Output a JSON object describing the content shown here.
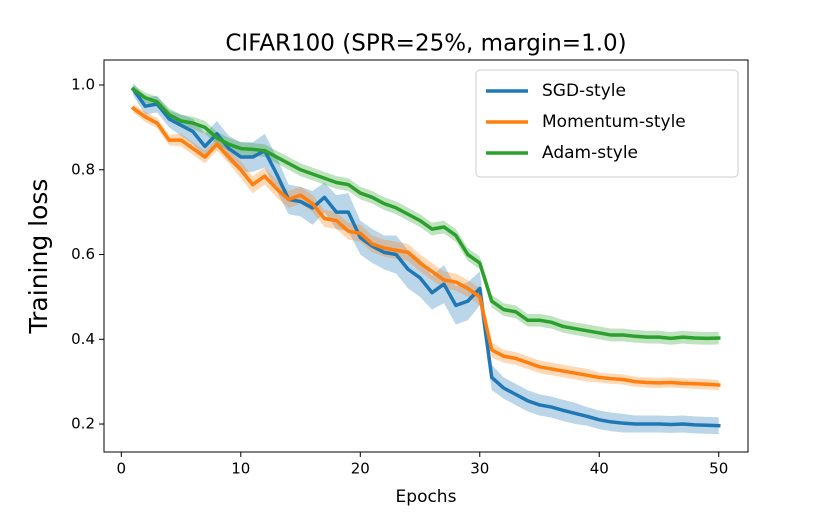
{
  "chart_data": {
    "type": "line",
    "title": "CIFAR100 (SPR=25%, margin=1.0)",
    "xlabel": "Epochs",
    "ylabel": "Training loss",
    "x": [
      1,
      2,
      3,
      4,
      5,
      6,
      7,
      8,
      9,
      10,
      11,
      12,
      13,
      14,
      15,
      16,
      17,
      18,
      19,
      20,
      21,
      22,
      23,
      24,
      25,
      26,
      27,
      28,
      29,
      30,
      31,
      32,
      33,
      34,
      35,
      36,
      37,
      38,
      39,
      40,
      41,
      42,
      43,
      44,
      45,
      46,
      47,
      48,
      49,
      50
    ],
    "xlim": [
      -1.45,
      52.45
    ],
    "xticks": [
      0,
      10,
      20,
      30,
      40,
      50
    ],
    "ylim": [
      0.134,
      1.059
    ],
    "yticks": [
      0.2,
      0.4,
      0.6,
      0.8,
      {
        "value": 1.0,
        "label": "1.0"
      }
    ],
    "legend": "upper right",
    "grid": false,
    "series": [
      {
        "name": "SGD-style",
        "color": "#1f77b4",
        "values": [
          0.99,
          0.95,
          0.955,
          0.92,
          0.905,
          0.89,
          0.855,
          0.885,
          0.85,
          0.83,
          0.83,
          0.845,
          0.79,
          0.73,
          0.725,
          0.71,
          0.735,
          0.7,
          0.7,
          0.64,
          0.62,
          0.605,
          0.6,
          0.565,
          0.545,
          0.51,
          0.53,
          0.48,
          0.49,
          0.52,
          0.31,
          0.285,
          0.27,
          0.255,
          0.245,
          0.24,
          0.232,
          0.225,
          0.218,
          0.21,
          0.205,
          0.202,
          0.2,
          0.2,
          0.2,
          0.199,
          0.2,
          0.198,
          0.197,
          0.196
        ],
        "error": [
          0.015,
          0.02,
          0.02,
          0.02,
          0.025,
          0.03,
          0.03,
          0.03,
          0.03,
          0.035,
          0.035,
          0.04,
          0.04,
          0.035,
          0.035,
          0.04,
          0.035,
          0.04,
          0.045,
          0.04,
          0.04,
          0.04,
          0.045,
          0.045,
          0.045,
          0.04,
          0.045,
          0.045,
          0.045,
          0.04,
          0.03,
          0.025,
          0.025,
          0.025,
          0.025,
          0.025,
          0.025,
          0.025,
          0.022,
          0.022,
          0.022,
          0.022,
          0.02,
          0.02,
          0.02,
          0.02,
          0.02,
          0.02,
          0.02,
          0.02
        ]
      },
      {
        "name": "Momentum-style",
        "color": "#ff7f0e",
        "values": [
          0.945,
          0.925,
          0.91,
          0.87,
          0.87,
          0.85,
          0.83,
          0.86,
          0.83,
          0.8,
          0.765,
          0.785,
          0.755,
          0.73,
          0.74,
          0.72,
          0.685,
          0.68,
          0.655,
          0.65,
          0.625,
          0.615,
          0.61,
          0.605,
          0.58,
          0.56,
          0.54,
          0.535,
          0.52,
          0.5,
          0.375,
          0.36,
          0.355,
          0.345,
          0.335,
          0.33,
          0.325,
          0.32,
          0.315,
          0.31,
          0.307,
          0.305,
          0.3,
          0.298,
          0.297,
          0.298,
          0.296,
          0.295,
          0.294,
          0.292
        ],
        "error": [
          0.01,
          0.012,
          0.012,
          0.012,
          0.015,
          0.015,
          0.015,
          0.015,
          0.015,
          0.02,
          0.02,
          0.02,
          0.02,
          0.02,
          0.02,
          0.02,
          0.02,
          0.02,
          0.02,
          0.02,
          0.02,
          0.02,
          0.02,
          0.02,
          0.02,
          0.02,
          0.02,
          0.02,
          0.02,
          0.02,
          0.018,
          0.015,
          0.015,
          0.015,
          0.015,
          0.015,
          0.015,
          0.015,
          0.015,
          0.012,
          0.012,
          0.012,
          0.012,
          0.012,
          0.012,
          0.012,
          0.012,
          0.012,
          0.012,
          0.012
        ]
      },
      {
        "name": "Adam-style",
        "color": "#2ca02c",
        "values": [
          0.99,
          0.97,
          0.96,
          0.93,
          0.915,
          0.91,
          0.9,
          0.875,
          0.86,
          0.85,
          0.848,
          0.845,
          0.83,
          0.815,
          0.8,
          0.79,
          0.78,
          0.77,
          0.765,
          0.745,
          0.735,
          0.72,
          0.71,
          0.695,
          0.68,
          0.66,
          0.665,
          0.645,
          0.6,
          0.58,
          0.49,
          0.47,
          0.465,
          0.445,
          0.445,
          0.44,
          0.43,
          0.425,
          0.42,
          0.415,
          0.41,
          0.41,
          0.407,
          0.405,
          0.405,
          0.402,
          0.405,
          0.403,
          0.402,
          0.403
        ],
        "error": [
          0.01,
          0.012,
          0.012,
          0.015,
          0.015,
          0.015,
          0.015,
          0.015,
          0.015,
          0.015,
          0.015,
          0.015,
          0.015,
          0.015,
          0.015,
          0.015,
          0.015,
          0.015,
          0.015,
          0.015,
          0.015,
          0.015,
          0.015,
          0.015,
          0.015,
          0.015,
          0.015,
          0.015,
          0.015,
          0.015,
          0.015,
          0.015,
          0.015,
          0.015,
          0.015,
          0.015,
          0.015,
          0.015,
          0.015,
          0.015,
          0.015,
          0.015,
          0.015,
          0.015,
          0.015,
          0.015,
          0.015,
          0.015,
          0.015,
          0.015
        ]
      }
    ]
  }
}
